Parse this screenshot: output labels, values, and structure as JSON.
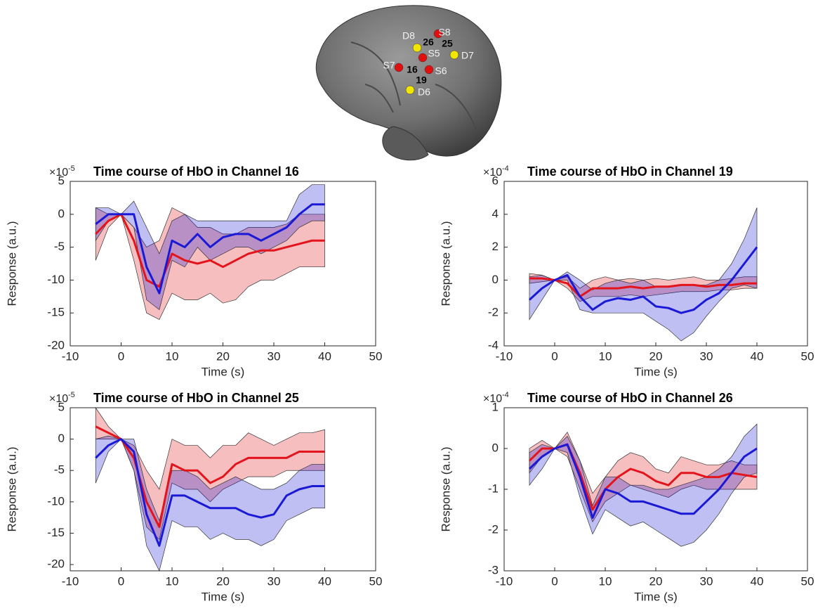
{
  "brain": {
    "optodes": [
      "S8",
      "D8",
      "S5",
      "D7",
      "S7",
      "S6",
      "D6"
    ],
    "channels": [
      "26",
      "25",
      "16",
      "19"
    ]
  },
  "chart_data": [
    {
      "type": "line",
      "title": "Time course of HbO in Channel 16",
      "y_multiplier": {
        "base": "×10",
        "exponent": "-5"
      },
      "xlabel": "Time (s)",
      "ylabel": "Response (a.u.)",
      "x": [
        -5,
        -2.5,
        0,
        2.5,
        5,
        7.5,
        10,
        12.5,
        15,
        17.5,
        20,
        22.5,
        25,
        27.5,
        30,
        32.5,
        35,
        37.5,
        40
      ],
      "xlim": [
        -10,
        50
      ],
      "xticks": [
        -10,
        0,
        10,
        20,
        30,
        40,
        50
      ],
      "ylim": [
        -20,
        5
      ],
      "yticks": [
        5,
        0,
        -5,
        -10,
        -15,
        -20
      ],
      "series": [
        {
          "color": "#e3141b",
          "values": [
            -3,
            -1,
            0,
            -4,
            -10,
            -11,
            -6,
            -7,
            -7.5,
            -7,
            -8,
            -7,
            -6,
            -5.5,
            -5.5,
            -5,
            -4.5,
            -4,
            -4
          ],
          "upper": [
            1,
            0,
            0,
            -2,
            -5,
            -4,
            1,
            0,
            -2,
            -2,
            -3,
            -3,
            -2,
            -2,
            -2,
            -1.5,
            0,
            0,
            0
          ],
          "lower": [
            -7,
            -2,
            0,
            -7,
            -15,
            -16,
            -12,
            -13,
            -13,
            -12,
            -13.5,
            -13,
            -11,
            -10,
            -10,
            -9,
            -8,
            -8,
            -8
          ]
        },
        {
          "color": "#1a1ad6",
          "values": [
            -1.5,
            0,
            0,
            0,
            -8,
            -12,
            -4,
            -5,
            -3,
            -5,
            -3.5,
            -3,
            -3,
            -4,
            -3,
            -2,
            0,
            1.5,
            1.5
          ],
          "upper": [
            1,
            1,
            0,
            2,
            -2,
            -6,
            -1,
            0,
            -1,
            -1,
            -1,
            -1,
            -1,
            -1,
            -1,
            -1,
            3,
            4.5,
            4.5
          ],
          "lower": [
            -4,
            -1,
            0,
            -2,
            -13,
            -14.5,
            -7,
            -8,
            -5,
            -7,
            -6,
            -5,
            -5,
            -6,
            -5,
            -4,
            -2,
            -1,
            -1
          ]
        }
      ]
    },
    {
      "type": "line",
      "title": "Time course of HbO in Channel 19",
      "y_multiplier": {
        "base": "×10",
        "exponent": "-4"
      },
      "xlabel": "Time (s)",
      "ylabel": "Response (a.u.)",
      "x": [
        -5,
        -2.5,
        0,
        2.5,
        5,
        7.5,
        10,
        12.5,
        15,
        17.5,
        20,
        22.5,
        25,
        27.5,
        30,
        32.5,
        35,
        37.5,
        40
      ],
      "xlim": [
        -10,
        50
      ],
      "xticks": [
        -10,
        0,
        10,
        20,
        30,
        40,
        50
      ],
      "ylim": [
        -4,
        6
      ],
      "yticks": [
        6,
        4,
        2,
        0,
        -2,
        -4
      ],
      "series": [
        {
          "color": "#e3141b",
          "values": [
            0.1,
            0.1,
            0,
            -0.2,
            -1.0,
            -0.5,
            -0.5,
            -0.5,
            -0.4,
            -0.5,
            -0.4,
            -0.4,
            -0.3,
            -0.3,
            -0.4,
            -0.3,
            -0.3,
            -0.2,
            -0.2
          ],
          "upper": [
            0.4,
            0.3,
            0,
            0.2,
            -0.5,
            0,
            0.2,
            0,
            0.1,
            0,
            0.1,
            0,
            0.1,
            0.2,
            0,
            0,
            0.1,
            0.2,
            0.2
          ],
          "lower": [
            -0.2,
            -0.1,
            0,
            -0.5,
            -1.3,
            -1.0,
            -1.0,
            -1.0,
            -0.9,
            -1.0,
            -0.9,
            -0.8,
            -0.7,
            -0.7,
            -0.7,
            -0.6,
            -0.6,
            -0.5,
            -0.5
          ]
        },
        {
          "color": "#1a1ad6",
          "values": [
            -1.2,
            -0.5,
            0,
            0.3,
            -1.0,
            -1.8,
            -1.3,
            -1.1,
            -1.2,
            -1.0,
            -1.6,
            -1.7,
            -2.0,
            -1.8,
            -1.2,
            -0.8,
            0,
            1.0,
            2.0
          ],
          "upper": [
            0.2,
            0.3,
            0,
            0.5,
            0,
            -0.6,
            -0.2,
            0,
            -0.2,
            0,
            -0.4,
            -0.4,
            -0.3,
            -0.3,
            -0.3,
            0,
            1,
            2.5,
            4.4
          ],
          "lower": [
            -2.4,
            -1.2,
            0,
            0,
            -1.8,
            -2.0,
            -2.0,
            -2.0,
            -2.0,
            -2.0,
            -2.5,
            -3.0,
            -3.7,
            -3.2,
            -2.2,
            -1.3,
            -0.5,
            -0.3,
            -0.5
          ]
        }
      ]
    },
    {
      "type": "line",
      "title": "Time course of HbO in Channel 25",
      "y_multiplier": {
        "base": "×10",
        "exponent": "-5"
      },
      "xlabel": "Time (s)",
      "ylabel": "Response (a.u.)",
      "x": [
        -5,
        -2.5,
        0,
        2.5,
        5,
        7.5,
        10,
        12.5,
        15,
        17.5,
        20,
        22.5,
        25,
        27.5,
        30,
        32.5,
        35,
        37.5,
        40
      ],
      "xlim": [
        -10,
        50
      ],
      "xticks": [
        -10,
        0,
        10,
        20,
        30,
        40,
        50
      ],
      "ylim": [
        -21,
        5
      ],
      "yticks": [
        5,
        0,
        -5,
        -10,
        -15,
        -20
      ],
      "series": [
        {
          "color": "#e3141b",
          "values": [
            2,
            1,
            0,
            -3,
            -10,
            -14,
            -4,
            -5,
            -5,
            -7,
            -6,
            -4,
            -3,
            -3,
            -3,
            -3,
            -2,
            -2,
            -2
          ],
          "upper": [
            5,
            2,
            0,
            -1,
            -5,
            -8,
            0,
            -1,
            -1,
            -3,
            -1,
            -1,
            1,
            0,
            -1,
            0,
            1,
            1,
            1.5
          ],
          "lower": [
            0,
            0,
            0,
            -5,
            -14,
            -16,
            -7,
            -8,
            -8,
            -10,
            -8,
            -7,
            -6,
            -6,
            -6,
            -5,
            -5,
            -5,
            -5
          ]
        },
        {
          "color": "#1a1ad6",
          "values": [
            -3,
            -1,
            0,
            -2,
            -12,
            -17,
            -9,
            -9,
            -10,
            -11,
            -11,
            -11,
            -12,
            -12.5,
            -12,
            -9,
            -8,
            -7.5,
            -7.5
          ],
          "upper": [
            0,
            0.5,
            0,
            0,
            -8,
            -13,
            -5,
            -5,
            -6,
            -8,
            -7,
            -6,
            -7,
            -8,
            -8,
            -7,
            -5,
            -4,
            -4
          ],
          "lower": [
            -7,
            -2,
            0,
            -5,
            -17,
            -21,
            -13,
            -14,
            -14,
            -16,
            -15,
            -16,
            -16,
            -17,
            -16,
            -13,
            -12,
            -11,
            -11
          ]
        }
      ]
    },
    {
      "type": "line",
      "title": "Time course of HbO in Channel 26",
      "y_multiplier": {
        "base": "×10",
        "exponent": "-4"
      },
      "xlabel": "Time (s)",
      "ylabel": "Response (a.u.)",
      "x": [
        -5,
        -2.5,
        0,
        2.5,
        5,
        7.5,
        10,
        12.5,
        15,
        17.5,
        20,
        22.5,
        25,
        27.5,
        30,
        32.5,
        35,
        37.5,
        40
      ],
      "xlim": [
        -10,
        50
      ],
      "xticks": [
        -10,
        0,
        10,
        20,
        30,
        40,
        50
      ],
      "ylim": [
        -3,
        1
      ],
      "yticks": [
        1,
        0,
        -1,
        -2,
        -3
      ],
      "series": [
        {
          "color": "#e3141b",
          "values": [
            -0.3,
            0,
            0,
            0.1,
            -0.6,
            -1.5,
            -1.0,
            -0.7,
            -0.5,
            -0.6,
            -0.8,
            -0.9,
            -0.6,
            -0.6,
            -0.7,
            -0.7,
            -0.6,
            -0.65,
            -0.7
          ],
          "upper": [
            0,
            0.2,
            0,
            0.4,
            -0.3,
            -1.1,
            -0.7,
            -0.3,
            -0.1,
            -0.2,
            -0.5,
            -0.6,
            -0.2,
            -0.3,
            -0.4,
            -0.4,
            -0.3,
            -0.4,
            -0.4
          ],
          "lower": [
            -0.6,
            -0.2,
            0,
            -0.2,
            -1.0,
            -1.8,
            -1.3,
            -1.1,
            -0.9,
            -1.0,
            -1.1,
            -1.2,
            -1.0,
            -0.9,
            -1.0,
            -1.0,
            -1.0,
            -1.0,
            -1.0
          ]
        },
        {
          "color": "#1a1ad6",
          "values": [
            -0.5,
            -0.2,
            0,
            0.1,
            -0.7,
            -1.7,
            -1.0,
            -1.1,
            -1.3,
            -1.3,
            -1.4,
            -1.5,
            -1.6,
            -1.6,
            -1.3,
            -1.0,
            -0.6,
            -0.2,
            0
          ],
          "upper": [
            -0.1,
            0.1,
            0,
            0.3,
            -0.3,
            -1.4,
            -0.7,
            -0.7,
            -0.9,
            -0.9,
            -1.0,
            -1.0,
            -0.9,
            -0.8,
            -0.7,
            -0.5,
            -0.2,
            0.3,
            0.6
          ],
          "lower": [
            -0.9,
            -0.5,
            0,
            -0.1,
            -1.2,
            -2.1,
            -1.5,
            -1.7,
            -1.9,
            -1.8,
            -2.0,
            -2.2,
            -2.4,
            -2.3,
            -2.0,
            -1.6,
            -1.1,
            -0.7,
            -0.6
          ]
        }
      ]
    }
  ]
}
